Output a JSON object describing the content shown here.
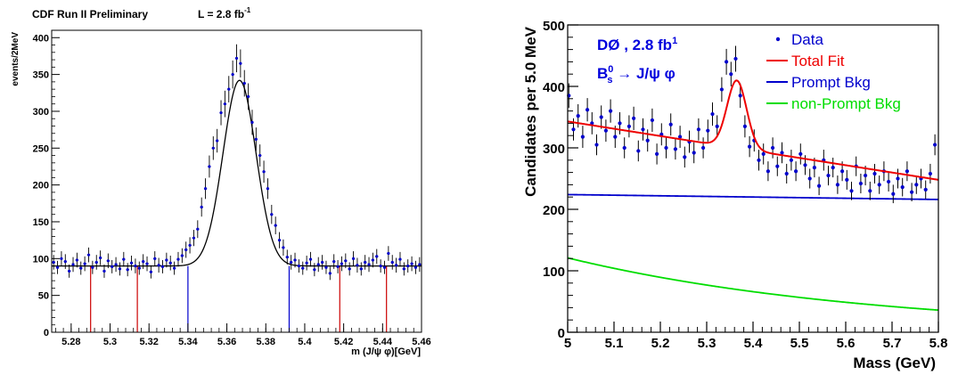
{
  "chart_data": [
    {
      "type": "scatter",
      "header_left": "CDF Run II Preliminary",
      "header_lumi": "L = 2.8 fb",
      "header_lumi_sup": "-1",
      "xlabel": "m (J/ψ φ)[GeV]",
      "ylabel": "events/2MeV",
      "xlim": [
        5.27,
        5.46
      ],
      "ylim": [
        0,
        410
      ],
      "x_ticks": [
        5.28,
        5.3,
        5.32,
        5.34,
        5.36,
        5.38,
        5.4,
        5.42,
        5.44,
        5.46
      ],
      "x_tick_labels": [
        "5.28",
        "5.3",
        "5.32",
        "5.34",
        "5.36",
        "5.38",
        "5.4",
        "5.42",
        "5.44",
        "5.46"
      ],
      "y_ticks": [
        0,
        50,
        100,
        150,
        200,
        250,
        300,
        350,
        400
      ],
      "y_tick_labels": [
        "0",
        "50",
        "100",
        "150",
        "200",
        "250",
        "300",
        "350",
        "400"
      ],
      "fit": {
        "baseline": 90,
        "peak": 5.3665,
        "amplitude": 252,
        "sigma": 0.0085,
        "color": "#000000"
      },
      "sideband_lines": [
        {
          "x": 5.29,
          "color": "#cc0000"
        },
        {
          "x": 5.314,
          "color": "#cc0000"
        },
        {
          "x": 5.34,
          "color": "#0000cc"
        },
        {
          "x": 5.392,
          "color": "#0000cc"
        },
        {
          "x": 5.418,
          "color": "#cc0000"
        },
        {
          "x": 5.442,
          "color": "#cc0000"
        }
      ],
      "series": [
        {
          "marker_color": "#0000cc",
          "x": [
            5.271,
            5.273,
            5.275,
            5.277,
            5.279,
            5.281,
            5.283,
            5.285,
            5.287,
            5.289,
            5.291,
            5.293,
            5.295,
            5.297,
            5.299,
            5.301,
            5.303,
            5.305,
            5.307,
            5.309,
            5.311,
            5.313,
            5.315,
            5.317,
            5.319,
            5.321,
            5.323,
            5.325,
            5.327,
            5.329,
            5.331,
            5.333,
            5.335,
            5.337,
            5.339,
            5.341,
            5.343,
            5.345,
            5.347,
            5.349,
            5.351,
            5.353,
            5.355,
            5.357,
            5.359,
            5.361,
            5.363,
            5.365,
            5.367,
            5.369,
            5.371,
            5.373,
            5.375,
            5.377,
            5.379,
            5.381,
            5.383,
            5.385,
            5.387,
            5.389,
            5.391,
            5.393,
            5.395,
            5.397,
            5.399,
            5.401,
            5.403,
            5.405,
            5.407,
            5.409,
            5.411,
            5.413,
            5.415,
            5.417,
            5.419,
            5.421,
            5.423,
            5.425,
            5.427,
            5.429,
            5.431,
            5.433,
            5.435,
            5.437,
            5.439,
            5.441,
            5.443,
            5.445,
            5.447,
            5.449,
            5.451,
            5.453,
            5.455,
            5.457,
            5.459
          ],
          "y": [
            95,
            88,
            100,
            96,
            83,
            92,
            98,
            87,
            93,
            105,
            88,
            95,
            101,
            83,
            97,
            89,
            92,
            86,
            99,
            85,
            94,
            90,
            87,
            96,
            93,
            82,
            100,
            91,
            89,
            98,
            94,
            87,
            99,
            104,
            112,
            118,
            128,
            140,
            170,
            195,
            225,
            250,
            260,
            298,
            310,
            330,
            350,
            372,
            365,
            338,
            320,
            285,
            262,
            240,
            218,
            195,
            160,
            145,
            125,
            115,
            102,
            95,
            98,
            90,
            87,
            94,
            99,
            85,
            92,
            95,
            88,
            80,
            96,
            89,
            93,
            97,
            86,
            100,
            91,
            86,
            95,
            92,
            98,
            103,
            90,
            88,
            107,
            95,
            91,
            99,
            86,
            90,
            93,
            88,
            92
          ],
          "yerr": [
            10,
            9,
            10,
            10,
            9,
            10,
            10,
            9,
            10,
            10,
            9,
            10,
            10,
            9,
            10,
            9,
            10,
            9,
            10,
            9,
            10,
            10,
            9,
            10,
            10,
            9,
            10,
            10,
            9,
            10,
            10,
            9,
            10,
            10,
            11,
            11,
            11,
            12,
            13,
            14,
            15,
            16,
            16,
            17,
            18,
            18,
            19,
            19,
            19,
            18,
            18,
            17,
            16,
            15,
            15,
            14,
            13,
            12,
            11,
            11,
            10,
            10,
            10,
            9,
            9,
            10,
            10,
            9,
            10,
            10,
            9,
            9,
            10,
            9,
            10,
            10,
            9,
            10,
            10,
            9,
            10,
            10,
            10,
            10,
            9,
            9,
            10,
            10,
            10,
            10,
            9,
            9,
            10,
            9,
            10
          ]
        }
      ]
    },
    {
      "type": "scatter",
      "xlabel": "Mass  (GeV)",
      "ylabel": "Candidates per 5.0 MeV",
      "xlim": [
        5.0,
        5.8
      ],
      "ylim": [
        0,
        500
      ],
      "x_ticks": [
        5.0,
        5.1,
        5.2,
        5.3,
        5.4,
        5.5,
        5.6,
        5.7,
        5.8
      ],
      "x_tick_labels": [
        "5",
        "5.1",
        "5.2",
        "5.3",
        "5.4",
        "5.5",
        "5.6",
        "5.7",
        "5.8"
      ],
      "y_ticks": [
        0,
        100,
        200,
        300,
        400,
        500
      ],
      "y_tick_labels": [
        "0",
        "100",
        "200",
        "300",
        "400",
        "500"
      ],
      "annotation_main": "DØ , 2.8 fb",
      "annotation_main_sup": "1",
      "annotation_decay_B": "B",
      "annotation_decay_sup": "0",
      "annotation_decay_sub": "s",
      "annotation_decay_rest": " → J/ψ φ",
      "annotation_color": "#0000dd",
      "legend": [
        {
          "label": "Data",
          "color": "#0000cc",
          "kind": "point"
        },
        {
          "label": "Total Fit",
          "color": "#ee0000",
          "kind": "line"
        },
        {
          "label": "Prompt Bkg",
          "color": "#0000cc",
          "kind": "line"
        },
        {
          "label": "non-Prompt Bkg",
          "color": "#00dd00",
          "kind": "line"
        }
      ],
      "lines": {
        "total_fit": {
          "color": "#ee0000",
          "bkg_start": 343,
          "bkg_end": 248,
          "peak": 5.365,
          "amplitude": 110,
          "sigma": 0.021
        },
        "prompt_bkg": {
          "color": "#0000cc",
          "start": 224,
          "end": 216
        },
        "non_prompt_bkg": {
          "color": "#00dd00",
          "start": 121,
          "end": 36
        }
      },
      "series": [
        {
          "name": "Data",
          "marker_color": "#0000cc",
          "x": [
            5.0025,
            5.0125,
            5.0225,
            5.0325,
            5.0425,
            5.0525,
            5.0625,
            5.0725,
            5.0825,
            5.0925,
            5.1025,
            5.1125,
            5.1225,
            5.1325,
            5.1425,
            5.1525,
            5.1625,
            5.1725,
            5.1825,
            5.1925,
            5.2025,
            5.2125,
            5.2225,
            5.2325,
            5.2425,
            5.2525,
            5.2625,
            5.2725,
            5.2825,
            5.2925,
            5.3025,
            5.3125,
            5.3225,
            5.3325,
            5.3425,
            5.3525,
            5.3625,
            5.3725,
            5.3825,
            5.3925,
            5.4025,
            5.4125,
            5.4225,
            5.4325,
            5.4425,
            5.4525,
            5.4625,
            5.4725,
            5.4825,
            5.4925,
            5.5025,
            5.5125,
            5.5225,
            5.5325,
            5.5425,
            5.5525,
            5.5625,
            5.5725,
            5.5825,
            5.5925,
            5.6025,
            5.6125,
            5.6225,
            5.6325,
            5.6425,
            5.6525,
            5.6625,
            5.6725,
            5.6825,
            5.6925,
            5.7025,
            5.7125,
            5.7225,
            5.7325,
            5.7425,
            5.7525,
            5.7625,
            5.7725,
            5.7825,
            5.7925
          ],
          "y": [
            385,
            330,
            352,
            318,
            362,
            340,
            305,
            350,
            328,
            360,
            318,
            340,
            300,
            335,
            348,
            295,
            330,
            312,
            345,
            290,
            322,
            300,
            338,
            298,
            318,
            285,
            310,
            292,
            330,
            300,
            328,
            355,
            335,
            395,
            440,
            420,
            445,
            385,
            335,
            302,
            312,
            280,
            290,
            262,
            300,
            270,
            292,
            258,
            280,
            262,
            290,
            272,
            250,
            268,
            238,
            280,
            255,
            268,
            240,
            262,
            248,
            230,
            270,
            242,
            255,
            230,
            258,
            240,
            262,
            245,
            225,
            250,
            236,
            262,
            228,
            240,
            250,
            232,
            258,
            305
          ],
          "yerr": [
            20,
            18,
            19,
            18,
            19,
            18,
            17,
            19,
            18,
            19,
            18,
            18,
            17,
            18,
            19,
            17,
            18,
            18,
            19,
            17,
            18,
            17,
            18,
            17,
            18,
            17,
            18,
            17,
            18,
            17,
            18,
            19,
            18,
            20,
            21,
            20,
            21,
            20,
            18,
            17,
            18,
            17,
            17,
            16,
            17,
            16,
            17,
            16,
            17,
            16,
            17,
            16,
            16,
            16,
            15,
            17,
            16,
            16,
            15,
            16,
            16,
            15,
            16,
            16,
            16,
            15,
            16,
            15,
            16,
            16,
            15,
            16,
            15,
            16,
            15,
            15,
            16,
            15,
            16,
            17
          ]
        }
      ]
    }
  ]
}
